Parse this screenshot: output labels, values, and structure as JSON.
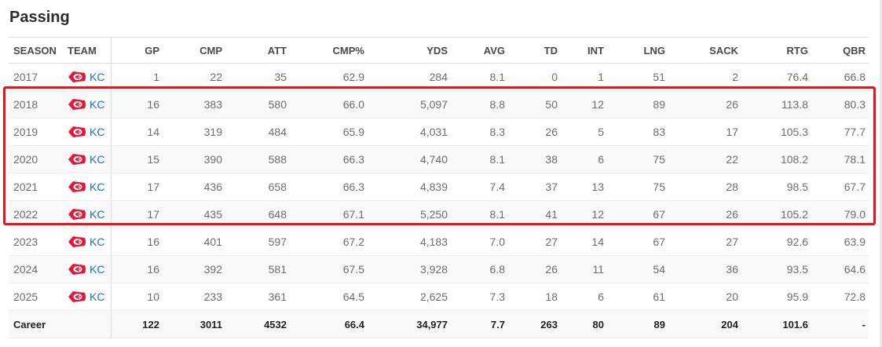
{
  "section": {
    "title": "Passing"
  },
  "columns": [
    "SEASON",
    "TEAM",
    "GP",
    "CMP",
    "ATT",
    "CMP%",
    "YDS",
    "AVG",
    "TD",
    "INT",
    "LNG",
    "SACK",
    "RTG",
    "QBR"
  ],
  "rows": [
    {
      "season": "2017",
      "team": "KC",
      "gp": "1",
      "cmp": "22",
      "att": "35",
      "cmp_pct": "62.9",
      "yds": "284",
      "avg": "8.1",
      "td": "0",
      "int": "1",
      "lng": "51",
      "sack": "2",
      "rtg": "76.4",
      "qbr": "66.8"
    },
    {
      "season": "2018",
      "team": "KC",
      "gp": "16",
      "cmp": "383",
      "att": "580",
      "cmp_pct": "66.0",
      "yds": "5,097",
      "avg": "8.8",
      "td": "50",
      "int": "12",
      "lng": "89",
      "sack": "26",
      "rtg": "113.8",
      "qbr": "80.3"
    },
    {
      "season": "2019",
      "team": "KC",
      "gp": "14",
      "cmp": "319",
      "att": "484",
      "cmp_pct": "65.9",
      "yds": "4,031",
      "avg": "8.3",
      "td": "26",
      "int": "5",
      "lng": "83",
      "sack": "17",
      "rtg": "105.3",
      "qbr": "77.7"
    },
    {
      "season": "2020",
      "team": "KC",
      "gp": "15",
      "cmp": "390",
      "att": "588",
      "cmp_pct": "66.3",
      "yds": "4,740",
      "avg": "8.1",
      "td": "38",
      "int": "6",
      "lng": "75",
      "sack": "22",
      "rtg": "108.2",
      "qbr": "78.1"
    },
    {
      "season": "2021",
      "team": "KC",
      "gp": "17",
      "cmp": "436",
      "att": "658",
      "cmp_pct": "66.3",
      "yds": "4,839",
      "avg": "7.4",
      "td": "37",
      "int": "13",
      "lng": "75",
      "sack": "28",
      "rtg": "98.5",
      "qbr": "67.7"
    },
    {
      "season": "2022",
      "team": "KC",
      "gp": "17",
      "cmp": "435",
      "att": "648",
      "cmp_pct": "67.1",
      "yds": "5,250",
      "avg": "8.1",
      "td": "41",
      "int": "12",
      "lng": "67",
      "sack": "26",
      "rtg": "105.2",
      "qbr": "79.0"
    },
    {
      "season": "2023",
      "team": "KC",
      "gp": "16",
      "cmp": "401",
      "att": "597",
      "cmp_pct": "67.2",
      "yds": "4,183",
      "avg": "7.0",
      "td": "27",
      "int": "14",
      "lng": "67",
      "sack": "27",
      "rtg": "92.6",
      "qbr": "63.9"
    },
    {
      "season": "2024",
      "team": "KC",
      "gp": "16",
      "cmp": "392",
      "att": "581",
      "cmp_pct": "67.5",
      "yds": "3,928",
      "avg": "6.8",
      "td": "26",
      "int": "11",
      "lng": "54",
      "sack": "36",
      "rtg": "93.5",
      "qbr": "64.6"
    },
    {
      "season": "2025",
      "team": "KC",
      "gp": "10",
      "cmp": "233",
      "att": "361",
      "cmp_pct": "64.5",
      "yds": "2,625",
      "avg": "7.3",
      "td": "18",
      "int": "6",
      "lng": "61",
      "sack": "20",
      "rtg": "95.9",
      "qbr": "72.8"
    }
  ],
  "career": {
    "label": "Career",
    "gp": "122",
    "cmp": "3011",
    "att": "4532",
    "cmp_pct": "66.4",
    "yds": "34,977",
    "avg": "7.7",
    "td": "263",
    "int": "80",
    "lng": "89",
    "sack": "204",
    "rtg": "101.6",
    "qbr": "-"
  },
  "highlight": {
    "color": "#e8141c",
    "seasons": [
      "2018",
      "2019",
      "2020",
      "2021",
      "2022"
    ]
  },
  "team_logo": {
    "icon": "chiefs-arrowhead-icon",
    "color": "#e31837"
  }
}
